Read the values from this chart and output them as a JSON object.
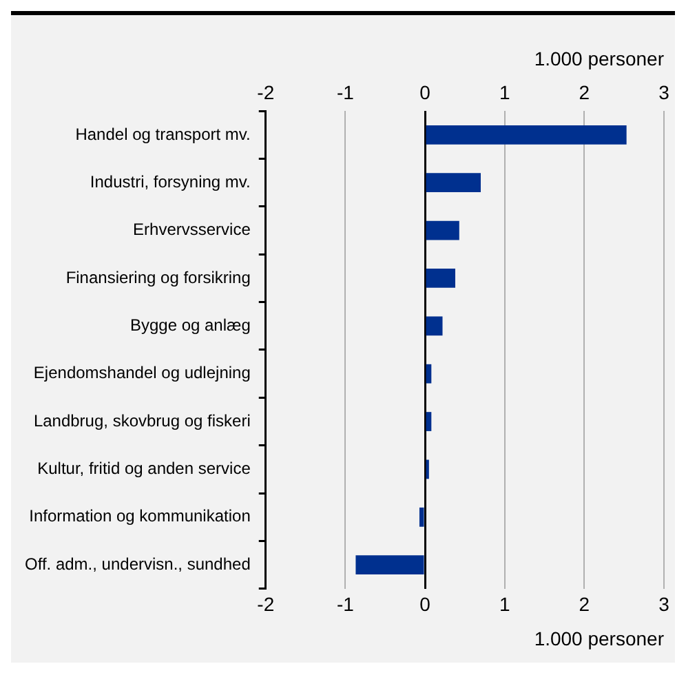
{
  "chart_data": {
    "type": "bar",
    "orientation": "horizontal",
    "categories": [
      "Handel og transport mv.",
      "Industri, forsyning mv.",
      "Erhvervsservice",
      "Finansiering og forsikring",
      "Bygge og anlæg",
      "Ejendomshandel og udlejning",
      "Landbrug, skovbrug og fiskeri",
      "Kultur, fritid og anden service",
      "Information og kommunikation",
      "Off. adm., undervisn., sundhed"
    ],
    "values": [
      2.53,
      0.7,
      0.43,
      0.38,
      0.22,
      0.08,
      0.08,
      0.05,
      -0.07,
      -0.87
    ],
    "color": "#00308f",
    "xlim": [
      -2,
      3
    ],
    "xticks": [
      -2,
      -1,
      0,
      1,
      2,
      3
    ],
    "xlabel": "1.000 personer",
    "x2lim": [
      -2,
      3
    ],
    "x2ticks": [
      -2,
      -1,
      0,
      1,
      2,
      3
    ],
    "x2label": "1.000 personer",
    "grid": "x"
  }
}
